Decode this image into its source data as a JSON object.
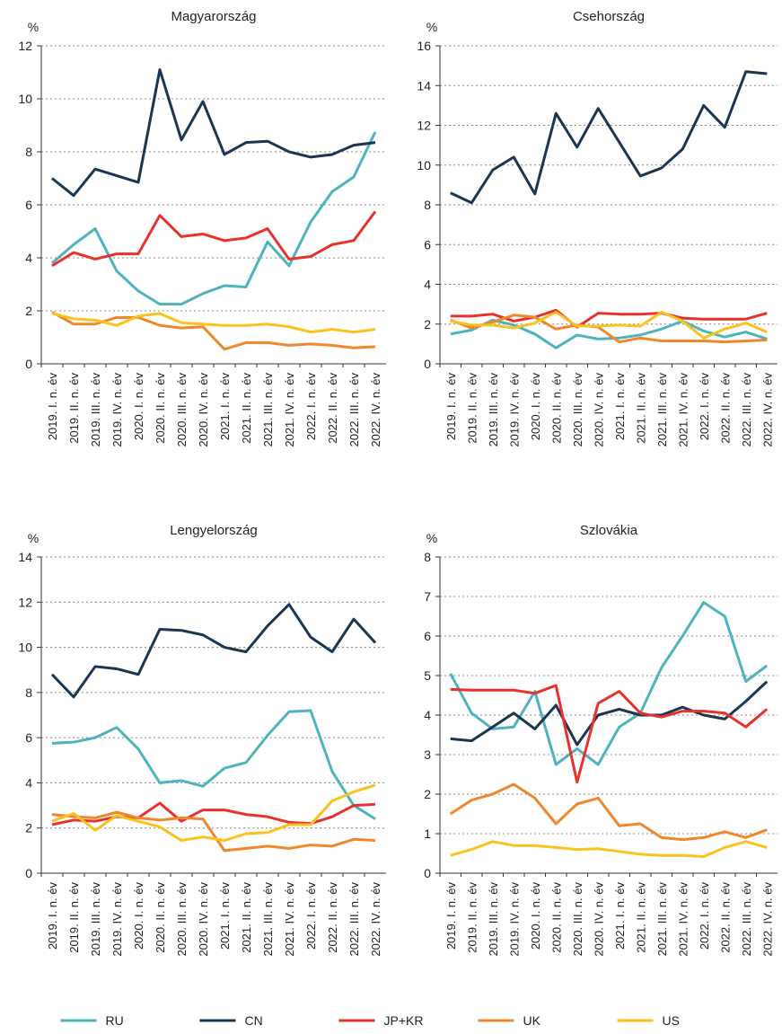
{
  "chart_data": [
    {
      "type": "line",
      "title": "Magyarország",
      "ylabel": "%",
      "categories": [
        "2019. I. n. év",
        "2019. II. n. év",
        "2019. III. n. év",
        "2019. IV. n. év",
        "2020. I. n. év",
        "2020. II. n. év",
        "2020. III. n. év",
        "2020. IV. n. év",
        "2021. I. n. év",
        "2021. II. n. év",
        "2021. III. n. év",
        "2021. IV. n. év",
        "2022. I. n. év",
        "2022. II. n. év",
        "2022. III. n. év",
        "2022. IV. n. év"
      ],
      "ylim": [
        0,
        12
      ],
      "yticks": [
        0,
        2,
        4,
        6,
        8,
        10,
        12
      ],
      "grid": true,
      "legend": "bottom",
      "series": [
        {
          "name": "RU",
          "color": "#4db3bd",
          "values": [
            3.8,
            4.5,
            5.1,
            3.5,
            2.75,
            2.25,
            2.25,
            2.65,
            2.95,
            2.9,
            4.6,
            3.7,
            5.35,
            6.5,
            7.05,
            8.75
          ]
        },
        {
          "name": "CN",
          "color": "#1c3550",
          "values": [
            7.0,
            6.35,
            7.35,
            7.1,
            6.85,
            11.1,
            8.45,
            9.9,
            7.9,
            8.35,
            8.4,
            8.0,
            7.8,
            7.9,
            8.25,
            8.35
          ]
        },
        {
          "name": "JP+KR",
          "color": "#e8312b",
          "values": [
            3.7,
            4.2,
            3.95,
            4.15,
            4.15,
            5.6,
            4.8,
            4.9,
            4.65,
            4.75,
            5.1,
            3.95,
            4.05,
            4.5,
            4.65,
            5.75
          ]
        },
        {
          "name": "UK",
          "color": "#f0872b",
          "values": [
            1.95,
            1.5,
            1.5,
            1.75,
            1.75,
            1.45,
            1.35,
            1.4,
            0.55,
            0.8,
            0.8,
            0.7,
            0.75,
            0.7,
            0.6,
            0.65
          ]
        },
        {
          "name": "US",
          "color": "#f9c21e",
          "values": [
            1.9,
            1.7,
            1.65,
            1.45,
            1.8,
            1.9,
            1.55,
            1.5,
            1.45,
            1.45,
            1.5,
            1.4,
            1.2,
            1.3,
            1.2,
            1.3
          ]
        }
      ]
    },
    {
      "type": "line",
      "title": "Csehország",
      "ylabel": "%",
      "categories": [
        "2019. I. n. év",
        "2019. II. n. év",
        "2019. III. n. év",
        "2019. IV. n. év",
        "2020. I. n. év",
        "2020. II. n. év",
        "2020. III. n. év",
        "2020. IV. n. év",
        "2021. I. n. év",
        "2021. II. n. év",
        "2021. III. n. év",
        "2021. IV. n. év",
        "2022. I. n. év",
        "2022. II. n. év",
        "2022. III. n. év",
        "2022. IV. n. év"
      ],
      "ylim": [
        0,
        16
      ],
      "yticks": [
        0,
        2,
        4,
        6,
        8,
        10,
        12,
        14,
        16
      ],
      "grid": true,
      "series": [
        {
          "name": "RU",
          "color": "#4db3bd",
          "values": [
            1.5,
            1.7,
            2.2,
            1.95,
            1.5,
            0.8,
            1.45,
            1.25,
            1.3,
            1.45,
            1.75,
            2.15,
            1.65,
            1.35,
            1.6,
            1.25
          ]
        },
        {
          "name": "CN",
          "color": "#1c3550",
          "values": [
            8.6,
            8.1,
            9.75,
            10.4,
            8.55,
            12.6,
            10.9,
            12.85,
            11.15,
            9.45,
            9.85,
            10.8,
            13.0,
            11.9,
            14.7,
            14.6
          ]
        },
        {
          "name": "JP+KR",
          "color": "#e8312b",
          "values": [
            2.4,
            2.4,
            2.5,
            2.15,
            2.35,
            2.7,
            1.85,
            2.55,
            2.5,
            2.5,
            2.55,
            2.3,
            2.25,
            2.25,
            2.25,
            2.55
          ]
        },
        {
          "name": "UK",
          "color": "#f0872b",
          "values": [
            2.2,
            1.8,
            2.1,
            2.45,
            2.35,
            1.75,
            1.95,
            1.85,
            1.1,
            1.3,
            1.15,
            1.15,
            1.15,
            1.1,
            1.15,
            1.2
          ]
        },
        {
          "name": "US",
          "color": "#f9c21e",
          "values": [
            2.15,
            1.95,
            1.95,
            1.8,
            2.05,
            2.6,
            1.9,
            1.9,
            1.95,
            1.9,
            2.6,
            2.15,
            1.3,
            1.75,
            2.05,
            1.6
          ]
        }
      ]
    },
    {
      "type": "line",
      "title": "Lengyelország",
      "ylabel": "%",
      "categories": [
        "2019. I. n. év",
        "2019. II. n. év",
        "2019. III. n. év",
        "2019. IV. n. év",
        "2020. I. n. év",
        "2020. II. n. év",
        "2020. III. n. év",
        "2020. IV. n. év",
        "2021. I. n. év",
        "2021. II. n. év",
        "2021. III. n. év",
        "2021. IV. n. év",
        "2022. I. n. év",
        "2022. II. n. év",
        "2022. III. n. év",
        "2022. IV. n. év"
      ],
      "ylim": [
        0,
        14
      ],
      "yticks": [
        0,
        2,
        4,
        6,
        8,
        10,
        12,
        14
      ],
      "grid": true,
      "series": [
        {
          "name": "RU",
          "color": "#4db3bd",
          "values": [
            5.75,
            5.8,
            6.0,
            6.45,
            5.5,
            4.0,
            4.1,
            3.85,
            4.65,
            4.9,
            6.1,
            7.15,
            7.2,
            4.5,
            3.0,
            2.4
          ]
        },
        {
          "name": "CN",
          "color": "#1c3550",
          "values": [
            8.8,
            7.8,
            9.15,
            9.05,
            8.8,
            10.8,
            10.75,
            10.55,
            10.0,
            9.8,
            10.95,
            11.9,
            10.45,
            9.8,
            11.25,
            10.2
          ]
        },
        {
          "name": "JP+KR",
          "color": "#e8312b",
          "values": [
            2.15,
            2.35,
            2.3,
            2.5,
            2.45,
            3.1,
            2.3,
            2.8,
            2.8,
            2.6,
            2.5,
            2.25,
            2.2,
            2.5,
            3.0,
            3.05
          ]
        },
        {
          "name": "UK",
          "color": "#f0872b",
          "values": [
            2.6,
            2.5,
            2.45,
            2.7,
            2.45,
            2.35,
            2.45,
            2.4,
            1.0,
            1.1,
            1.2,
            1.1,
            1.25,
            1.2,
            1.5,
            1.45
          ]
        },
        {
          "name": "US",
          "color": "#f9c21e",
          "values": [
            2.3,
            2.65,
            1.9,
            2.55,
            2.3,
            2.05,
            1.45,
            1.6,
            1.45,
            1.75,
            1.8,
            2.15,
            2.15,
            3.2,
            3.6,
            3.9
          ]
        }
      ]
    },
    {
      "type": "line",
      "title": "Szlovákia",
      "ylabel": "%",
      "categories": [
        "2019. I. n. év",
        "2019. II. n. év",
        "2019. III. n. év",
        "2019. IV. n. év",
        "2020. I. n. év",
        "2020. II. n. év",
        "2020. III. n. év",
        "2020. IV. n. év",
        "2021. I. n. év",
        "2021. II. n. év",
        "2021. III. n. év",
        "2021. IV. n. év",
        "2022. I. n. év",
        "2022. II. n. év",
        "2022. III. n. év",
        "2022. IV. n. év"
      ],
      "ylim": [
        0,
        8
      ],
      "yticks": [
        0,
        1,
        2,
        3,
        4,
        5,
        6,
        7,
        8
      ],
      "grid": true,
      "series": [
        {
          "name": "RU",
          "color": "#4db3bd",
          "values": [
            5.05,
            4.05,
            3.65,
            3.7,
            4.6,
            2.75,
            3.15,
            2.75,
            3.7,
            4.05,
            5.2,
            6.0,
            6.85,
            6.5,
            4.85,
            5.25
          ]
        },
        {
          "name": "CN",
          "color": "#1c3550",
          "values": [
            3.4,
            3.35,
            3.7,
            4.05,
            3.65,
            4.25,
            3.25,
            4.0,
            4.15,
            4.0,
            4.0,
            4.2,
            4.0,
            3.9,
            4.35,
            4.85
          ]
        },
        {
          "name": "JP+KR",
          "color": "#e8312b",
          "values": [
            4.65,
            4.63,
            4.63,
            4.63,
            4.55,
            4.75,
            2.3,
            4.3,
            4.6,
            4.05,
            3.95,
            4.1,
            4.1,
            4.05,
            3.7,
            4.15
          ]
        },
        {
          "name": "UK",
          "color": "#f0872b",
          "values": [
            1.5,
            1.85,
            2.0,
            2.25,
            1.9,
            1.25,
            1.75,
            1.9,
            1.2,
            1.25,
            0.9,
            0.85,
            0.9,
            1.05,
            0.9,
            1.1
          ]
        },
        {
          "name": "US",
          "color": "#f9c21e",
          "values": [
            0.45,
            0.6,
            0.8,
            0.7,
            0.7,
            0.65,
            0.6,
            0.62,
            0.55,
            0.48,
            0.45,
            0.45,
            0.42,
            0.65,
            0.8,
            0.65
          ]
        }
      ]
    }
  ]
}
